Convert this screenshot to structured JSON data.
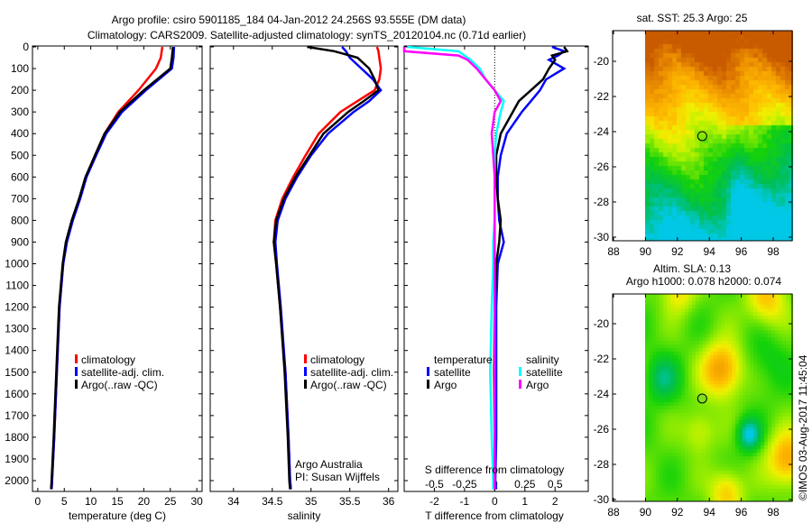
{
  "title": {
    "line1": "Argo profile: csiro 5901185_184 04-Jan-2012 24.256S 93.555E (DM data)",
    "line2": "Climatology: CARS2009. Satellite-adjusted climatology: synTS_20120104.nc (0.71d earlier)"
  },
  "colors": {
    "climatology": "#ff0000",
    "satellite": "#0000ff",
    "argo": "#000000",
    "sal_satellite": "#00ffff",
    "sal_argo": "#ff00ff"
  },
  "chart_data": [
    {
      "type": "line",
      "id": "temperature",
      "xlabel": "temperature (deg C)",
      "ylabel": "",
      "xlim": [
        -1,
        31
      ],
      "ylim": [
        2050,
        0
      ],
      "xticks": [
        0,
        5,
        10,
        15,
        20,
        25,
        30
      ],
      "yticks": [
        0,
        100,
        200,
        300,
        400,
        500,
        600,
        700,
        800,
        900,
        1000,
        1100,
        1200,
        1300,
        1400,
        1500,
        1600,
        1700,
        1800,
        1900,
        2000
      ],
      "depth": [
        0,
        50,
        100,
        200,
        300,
        400,
        500,
        600,
        700,
        800,
        900,
        1000,
        1200,
        1500,
        1800,
        2000,
        2040
      ],
      "series": [
        {
          "name": "climatology",
          "color": "#ff0000",
          "values": [
            23.5,
            23.2,
            22.3,
            19.0,
            15.2,
            12.6,
            10.8,
            9.1,
            7.9,
            6.5,
            5.4,
            4.8,
            4.1,
            3.6,
            3.1,
            2.7,
            2.6
          ]
        },
        {
          "name": "satellite-adj. clim.",
          "color": "#0000ff",
          "values": [
            25.7,
            25.6,
            25.3,
            20.4,
            15.9,
            12.9,
            11.0,
            9.2,
            8.0,
            6.6,
            5.5,
            4.8,
            4.1,
            3.6,
            3.1,
            2.7,
            2.6
          ]
        },
        {
          "name": "Argo(..raw -QC)",
          "color": "#000000",
          "values": [
            25.5,
            25.3,
            25.0,
            20.0,
            15.5,
            12.6,
            10.8,
            9.0,
            7.8,
            6.4,
            5.3,
            4.7,
            4.0,
            3.5,
            3.0,
            2.6,
            2.5
          ]
        }
      ],
      "legend": [
        "climatology",
        "satellite-adj. clim.",
        "Argo(..raw -QC)"
      ]
    },
    {
      "type": "line",
      "id": "salinity",
      "xlabel": "salinity",
      "xlim": [
        33.7,
        36.12
      ],
      "ylim": [
        2050,
        0
      ],
      "xticks": [
        34,
        34.5,
        35,
        35.5,
        36
      ],
      "depth": [
        0,
        20,
        50,
        100,
        150,
        200,
        250,
        300,
        400,
        500,
        600,
        700,
        800,
        900,
        1000,
        1200,
        1500,
        1800,
        2000,
        2040
      ],
      "series": [
        {
          "name": "climatology",
          "color": "#ff0000",
          "values": [
            35.85,
            35.87,
            35.88,
            35.9,
            35.88,
            35.82,
            35.6,
            35.38,
            35.1,
            34.93,
            34.77,
            34.63,
            34.54,
            34.52,
            34.55,
            34.6,
            34.67,
            34.71,
            34.73,
            34.74
          ]
        },
        {
          "name": "satellite-adj. clim.",
          "color": "#0000ff",
          "values": [
            35.4,
            35.45,
            35.5,
            35.65,
            35.8,
            35.9,
            35.75,
            35.55,
            35.22,
            35.0,
            34.82,
            34.67,
            34.57,
            34.54,
            34.56,
            34.61,
            34.67,
            34.71,
            34.73,
            34.74
          ]
        },
        {
          "name": "Argo(..raw -QC)",
          "color": "#000000",
          "values": [
            34.95,
            35.3,
            35.6,
            35.75,
            35.82,
            35.87,
            35.68,
            35.48,
            35.16,
            34.98,
            34.8,
            34.65,
            34.55,
            34.52,
            34.55,
            34.6,
            34.66,
            34.7,
            34.72,
            34.73
          ]
        }
      ],
      "legend": [
        "climatology",
        "satellite-adj. clim.",
        "Argo(..raw -QC)"
      ],
      "credit1": "Argo Australia",
      "credit2": "PI: Susan Wijffels"
    },
    {
      "type": "line",
      "id": "difference",
      "xlabel": "T difference from climatology",
      "x2label": "S difference from climatology",
      "xlim": [
        -3,
        3.1
      ],
      "ylim": [
        2050,
        0
      ],
      "xticks": [
        -2,
        -1,
        0,
        1,
        2
      ],
      "xtick_labels": [
        "-2",
        "-1",
        "0",
        "1",
        "2"
      ],
      "x2ticks": [
        "-0.5",
        "-0.25",
        "0",
        "0.25",
        "0.5"
      ],
      "depth": [
        0,
        20,
        40,
        60,
        100,
        150,
        200,
        250,
        300,
        400,
        500,
        600,
        700,
        800,
        900,
        1000,
        1200,
        1500,
        1800,
        2000,
        2040
      ],
      "series": [
        {
          "name": "temperature satellite",
          "color": "#0000ff",
          "values": [
            1.9,
            2.3,
            2.1,
            1.8,
            2.3,
            1.7,
            1.5,
            1.2,
            0.9,
            0.4,
            0.2,
            0.1,
            0.1,
            0.15,
            0.3,
            0.1,
            0.05,
            0.05,
            0.05,
            0.02,
            0.05
          ]
        },
        {
          "name": "temperature Argo",
          "color": "#000000",
          "values": [
            2.3,
            2.4,
            1.9,
            2.0,
            1.8,
            1.6,
            1.2,
            0.8,
            0.6,
            0.2,
            0.05,
            0.05,
            0.1,
            0.2,
            0.15,
            0.05,
            0.0,
            -0.02,
            0.0,
            0.0,
            0.0
          ]
        },
        {
          "name": "salinity satellite",
          "color": "#00ffff",
          "values": [
            -2.9,
            -1.2,
            -1.0,
            -0.8,
            -0.5,
            -0.3,
            0.0,
            0.3,
            0.2,
            0.05,
            0.0,
            0.0,
            0.0,
            0.0,
            -0.05,
            -0.05,
            -0.1,
            -0.15,
            -0.1,
            -0.05,
            -0.05
          ]
        },
        {
          "name": "salinity Argo",
          "color": "#ff00ff",
          "values": [
            -3.0,
            -3.0,
            -1.2,
            -0.9,
            -0.6,
            -0.3,
            0.0,
            0.2,
            0.0,
            -0.1,
            -0.05,
            0.0,
            0.0,
            0.0,
            0.0,
            0.0,
            0.0,
            0.0,
            0.0,
            0.0,
            0.0
          ]
        }
      ],
      "legend": {
        "temperature": "temperature",
        "salinity": "salinity",
        "satellite": "satellite",
        "argo": "Argo"
      }
    }
  ],
  "maps": [
    {
      "title": "sat. SST: 25.3 Argo: 25",
      "xticks": [
        "88",
        "90",
        "92",
        "94",
        "96",
        "98"
      ],
      "yticks": [
        "-20",
        "-22",
        "-24",
        "-26",
        "-28",
        "-30"
      ],
      "float_lon": 93.555,
      "float_lat": -24.256
    },
    {
      "title1": "Altim. SLA: 0.13",
      "title2": "Argo h1000: 0.078 h2000: 0.074",
      "xticks": [
        "88",
        "90",
        "92",
        "94",
        "96",
        "98"
      ],
      "yticks": [
        "-20",
        "-22",
        "-24",
        "-26",
        "-28",
        "-30"
      ],
      "float_lon": 93.555,
      "float_lat": -24.256
    }
  ],
  "footer": "©IMOS 03-Aug-2017 11:45:04"
}
